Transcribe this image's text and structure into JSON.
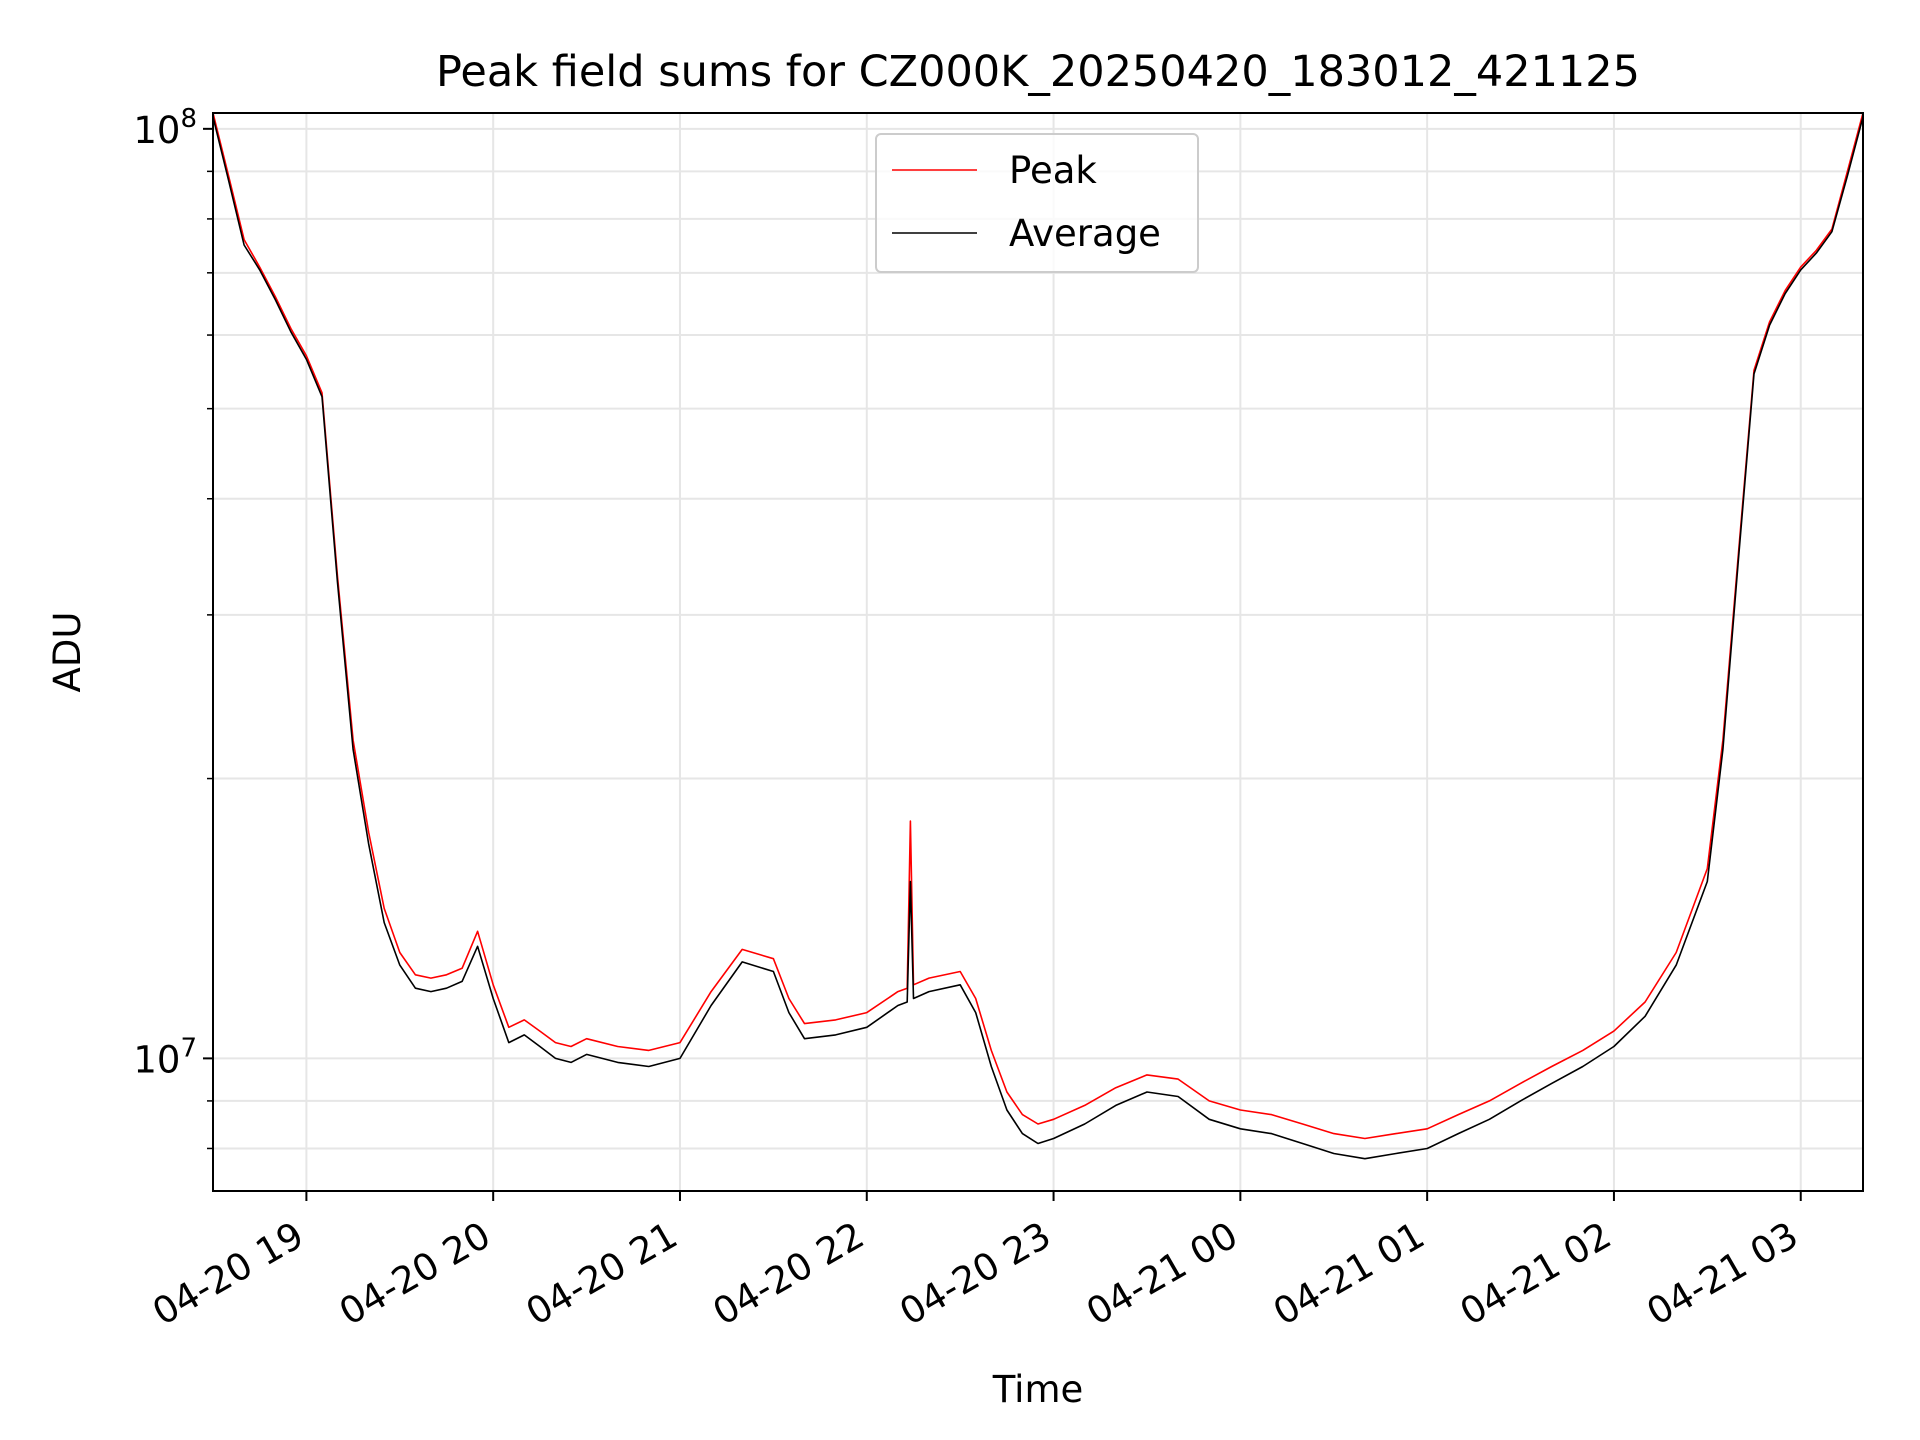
{
  "chart_data": {
    "type": "line",
    "title": "Peak field sums for CZ000K_20250420_183012_421125",
    "xlabel": "Time",
    "ylabel": "ADU",
    "yscale": "log",
    "xlim": [
      "2025-04-20 18:30",
      "2025-04-21 03:20"
    ],
    "ylim": [
      7200000,
      104000000
    ],
    "grid": true,
    "legend_position": "upper center",
    "x_ticks": [
      {
        "label": "04-20 19",
        "value": "2025-04-20 19:00"
      },
      {
        "label": "04-20 20",
        "value": "2025-04-20 20:00"
      },
      {
        "label": "04-20 21",
        "value": "2025-04-20 21:00"
      },
      {
        "label": "04-20 22",
        "value": "2025-04-20 22:00"
      },
      {
        "label": "04-20 23",
        "value": "2025-04-20 23:00"
      },
      {
        "label": "04-21 00",
        "value": "2025-04-21 00:00"
      },
      {
        "label": "04-21 01",
        "value": "2025-04-21 01:00"
      },
      {
        "label": "04-21 02",
        "value": "2025-04-21 02:00"
      },
      {
        "label": "04-21 03",
        "value": "2025-04-21 03:00"
      }
    ],
    "y_ticks": [
      {
        "label": "10",
        "exponent": "7",
        "value": 10000000
      },
      {
        "label": "10",
        "exponent": "8",
        "value": 100000000
      }
    ],
    "series": [
      {
        "name": "Peak",
        "color": "#ff0000",
        "x": [
          "2025-04-20 18:30",
          "2025-04-20 18:35",
          "2025-04-20 18:40",
          "2025-04-20 18:45",
          "2025-04-20 18:50",
          "2025-04-20 18:55",
          "2025-04-20 19:00",
          "2025-04-20 19:05",
          "2025-04-20 19:10",
          "2025-04-20 19:15",
          "2025-04-20 19:20",
          "2025-04-20 19:25",
          "2025-04-20 19:30",
          "2025-04-20 19:35",
          "2025-04-20 19:40",
          "2025-04-20 19:45",
          "2025-04-20 19:50",
          "2025-04-20 19:55",
          "2025-04-20 20:00",
          "2025-04-20 20:05",
          "2025-04-20 20:10",
          "2025-04-20 20:15",
          "2025-04-20 20:20",
          "2025-04-20 20:25",
          "2025-04-20 20:30",
          "2025-04-20 20:40",
          "2025-04-20 20:50",
          "2025-04-20 21:00",
          "2025-04-20 21:10",
          "2025-04-20 21:20",
          "2025-04-20 21:30",
          "2025-04-20 21:35",
          "2025-04-20 21:40",
          "2025-04-20 21:50",
          "2025-04-20 22:00",
          "2025-04-20 22:10",
          "2025-04-20 22:13",
          "2025-04-20 22:14",
          "2025-04-20 22:15",
          "2025-04-20 22:20",
          "2025-04-20 22:30",
          "2025-04-20 22:35",
          "2025-04-20 22:40",
          "2025-04-20 22:45",
          "2025-04-20 22:50",
          "2025-04-20 22:55",
          "2025-04-20 23:00",
          "2025-04-20 23:10",
          "2025-04-20 23:20",
          "2025-04-20 23:30",
          "2025-04-20 23:40",
          "2025-04-20 23:50",
          "2025-04-21 00:00",
          "2025-04-21 00:10",
          "2025-04-21 00:20",
          "2025-04-21 00:30",
          "2025-04-21 00:40",
          "2025-04-21 00:50",
          "2025-04-21 01:00",
          "2025-04-21 01:10",
          "2025-04-21 01:20",
          "2025-04-21 01:30",
          "2025-04-21 01:40",
          "2025-04-21 01:50",
          "2025-04-21 02:00",
          "2025-04-21 02:10",
          "2025-04-21 02:20",
          "2025-04-21 02:30",
          "2025-04-21 02:35",
          "2025-04-21 02:40",
          "2025-04-21 02:45",
          "2025-04-21 02:50",
          "2025-04-21 02:55",
          "2025-04-21 03:00",
          "2025-04-21 03:05",
          "2025-04-21 03:10",
          "2025-04-21 03:15",
          "2025-04-21 03:20"
        ],
        "y": [
          104000000,
          89000000,
          76000000,
          71000000,
          66000000,
          61000000,
          57000000,
          52000000,
          33000000,
          22000000,
          17500000,
          14500000,
          13000000,
          12300000,
          12200000,
          12300000,
          12500000,
          13700000,
          12000000,
          10800000,
          11000000,
          10700000,
          10400000,
          10300000,
          10500000,
          10300000,
          10200000,
          10400000,
          11800000,
          13100000,
          12800000,
          11600000,
          10900000,
          11000000,
          11200000,
          11800000,
          11900000,
          18000000,
          12000000,
          12200000,
          12400000,
          11600000,
          10200000,
          9200000,
          8700000,
          8500000,
          8600000,
          8900000,
          9300000,
          9600000,
          9500000,
          9000000,
          8800000,
          8700000,
          8500000,
          8300000,
          8200000,
          8300000,
          8400000,
          8700000,
          9000000,
          9400000,
          9800000,
          10200000,
          10700000,
          11500000,
          13000000,
          16000000,
          22000000,
          35000000,
          55000000,
          62000000,
          67000000,
          71000000,
          74000000,
          78000000,
          90000000,
          104000000
        ]
      },
      {
        "name": "Average",
        "color": "#000000",
        "x": [
          "2025-04-20 18:30",
          "2025-04-20 18:35",
          "2025-04-20 18:40",
          "2025-04-20 18:45",
          "2025-04-20 18:50",
          "2025-04-20 18:55",
          "2025-04-20 19:00",
          "2025-04-20 19:05",
          "2025-04-20 19:10",
          "2025-04-20 19:15",
          "2025-04-20 19:20",
          "2025-04-20 19:25",
          "2025-04-20 19:30",
          "2025-04-20 19:35",
          "2025-04-20 19:40",
          "2025-04-20 19:45",
          "2025-04-20 19:50",
          "2025-04-20 19:55",
          "2025-04-20 20:00",
          "2025-04-20 20:05",
          "2025-04-20 20:10",
          "2025-04-20 20:15",
          "2025-04-20 20:20",
          "2025-04-20 20:25",
          "2025-04-20 20:30",
          "2025-04-20 20:40",
          "2025-04-20 20:50",
          "2025-04-20 21:00",
          "2025-04-20 21:10",
          "2025-04-20 21:20",
          "2025-04-20 21:30",
          "2025-04-20 21:35",
          "2025-04-20 21:40",
          "2025-04-20 21:50",
          "2025-04-20 22:00",
          "2025-04-20 22:10",
          "2025-04-20 22:13",
          "2025-04-20 22:14",
          "2025-04-20 22:15",
          "2025-04-20 22:20",
          "2025-04-20 22:30",
          "2025-04-20 22:35",
          "2025-04-20 22:40",
          "2025-04-20 22:45",
          "2025-04-20 22:50",
          "2025-04-20 22:55",
          "2025-04-20 23:00",
          "2025-04-20 23:10",
          "2025-04-20 23:20",
          "2025-04-20 23:30",
          "2025-04-20 23:40",
          "2025-04-20 23:50",
          "2025-04-21 00:00",
          "2025-04-21 00:10",
          "2025-04-21 00:20",
          "2025-04-21 00:30",
          "2025-04-21 00:40",
          "2025-04-21 00:50",
          "2025-04-21 01:00",
          "2025-04-21 01:10",
          "2025-04-21 01:20",
          "2025-04-21 01:30",
          "2025-04-21 01:40",
          "2025-04-21 01:50",
          "2025-04-21 02:00",
          "2025-04-21 02:10",
          "2025-04-21 02:20",
          "2025-04-21 02:30",
          "2025-04-21 02:35",
          "2025-04-21 02:40",
          "2025-04-21 02:45",
          "2025-04-21 02:50",
          "2025-04-21 02:55",
          "2025-04-21 03:00",
          "2025-04-21 03:05",
          "2025-04-21 03:10",
          "2025-04-21 03:15",
          "2025-04-21 03:20"
        ],
        "y": [
          103000000,
          88000000,
          75000000,
          70500000,
          65500000,
          60500000,
          56500000,
          51500000,
          32500000,
          21500000,
          17000000,
          14000000,
          12600000,
          11900000,
          11800000,
          11900000,
          12100000,
          13200000,
          11600000,
          10400000,
          10600000,
          10300000,
          10000000,
          9900000,
          10100000,
          9900000,
          9800000,
          10000000,
          11400000,
          12700000,
          12400000,
          11200000,
          10500000,
          10600000,
          10800000,
          11400000,
          11500000,
          15500000,
          11600000,
          11800000,
          12000000,
          11200000,
          9800000,
          8800000,
          8300000,
          8100000,
          8200000,
          8500000,
          8900000,
          9200000,
          9100000,
          8600000,
          8400000,
          8300000,
          8100000,
          7900000,
          7800000,
          7900000,
          8000000,
          8300000,
          8600000,
          9000000,
          9400000,
          9800000,
          10300000,
          11100000,
          12600000,
          15500000,
          21500000,
          34500000,
          54500000,
          61500000,
          66500000,
          70500000,
          73500000,
          77500000,
          89000000,
          103000000
        ]
      }
    ]
  }
}
